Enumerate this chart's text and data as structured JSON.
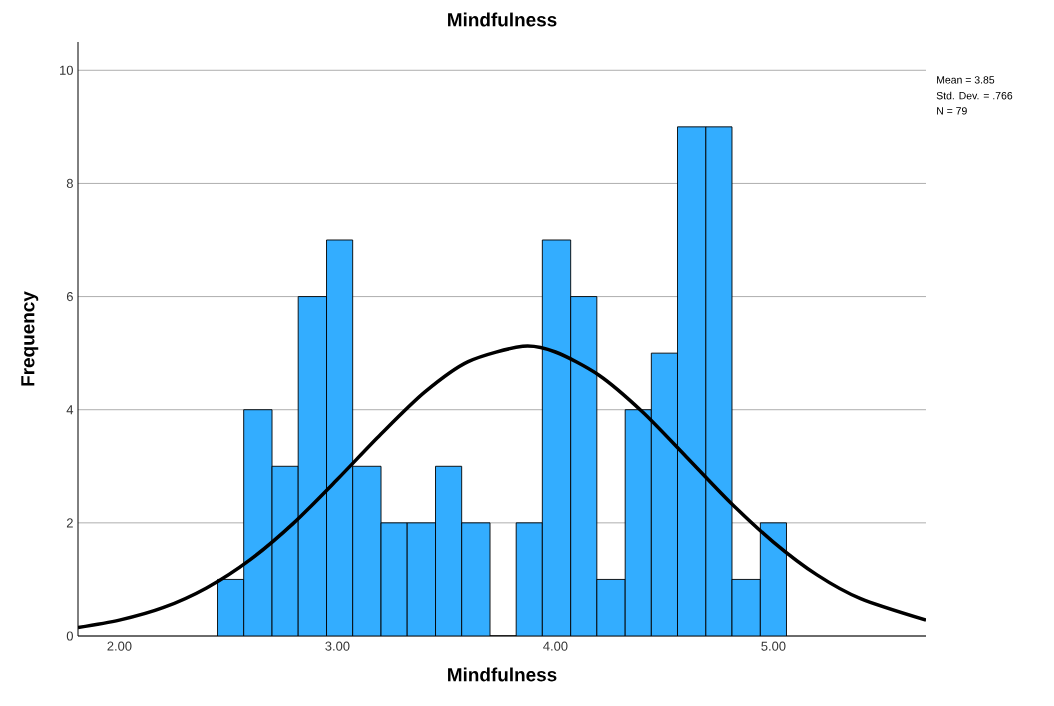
{
  "chart_data": {
    "type": "histogram",
    "title": "Mindfulness",
    "xlabel": "Mindfulness",
    "ylabel": "Frequency",
    "bins": [
      2.45,
      2.57,
      2.7,
      2.82,
      2.95,
      3.07,
      3.2,
      3.32,
      3.45,
      3.57,
      3.7,
      3.82,
      3.94,
      4.07,
      4.19,
      4.32,
      4.44,
      4.56,
      4.69,
      4.81,
      4.94,
      5.06
    ],
    "values": [
      1,
      4,
      3,
      6,
      7,
      3,
      2,
      2,
      3,
      2,
      0,
      2,
      7,
      6,
      1,
      4,
      5,
      9,
      9,
      1,
      2
    ],
    "color": "#33adff",
    "series": [
      {
        "type": "line",
        "color": "#000000",
        "x": [
          1.81,
          2.0,
          2.2,
          2.4,
          2.6,
          2.8,
          3.0,
          3.2,
          3.4,
          3.6,
          3.85,
          4.0,
          4.2,
          4.4,
          4.6,
          4.8,
          5.0,
          5.2,
          5.4,
          5.7
        ],
        "values": [
          0.15,
          0.28,
          0.5,
          0.85,
          1.35,
          2.0,
          2.77,
          3.57,
          4.31,
          4.85,
          5.12,
          5.02,
          4.61,
          3.96,
          3.17,
          2.37,
          1.66,
          1.08,
          0.66,
          0.28
        ]
      }
    ],
    "xlim": [
      1.81,
      5.7
    ],
    "ylim": [
      0,
      10.5
    ],
    "xticks": [
      {
        "value": 2,
        "label": "2.00"
      },
      {
        "value": 3,
        "label": "3.00"
      },
      {
        "value": 4,
        "label": "4.00"
      },
      {
        "value": 5,
        "label": "5.00"
      }
    ],
    "yticks": [
      0,
      2,
      4,
      6,
      8,
      10
    ],
    "grid": "y",
    "annotations": [
      "Mean = 3.85",
      "Std. Dev. = .766",
      "N = 79"
    ]
  }
}
